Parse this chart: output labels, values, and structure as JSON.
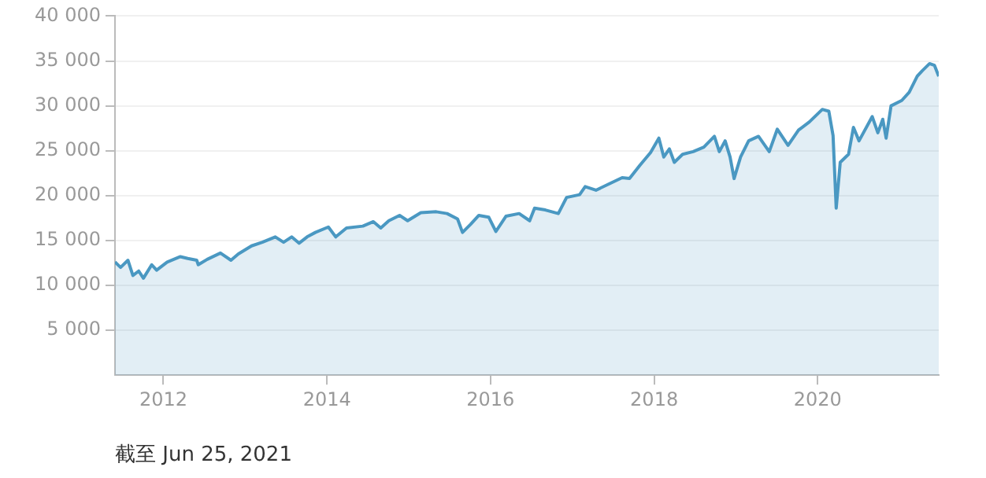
{
  "chart_data": {
    "type": "area",
    "annotations": [
      "截至 Jun 25, 2021"
    ],
    "x": [
      "2011-05-30",
      "2011-06-24",
      "2011-07-27",
      "2011-08-18",
      "2011-09-13",
      "2011-10-04",
      "2011-11-10",
      "2011-12-02",
      "2012-01-18",
      "2012-03-17",
      "2012-04-19",
      "2012-05-29",
      "2012-06-05",
      "2012-07-15",
      "2012-09-12",
      "2012-10-29",
      "2012-12-01",
      "2013-01-29",
      "2013-03-18",
      "2013-05-15",
      "2013-06-21",
      "2013-07-27",
      "2013-08-29",
      "2013-10-04",
      "2013-11-10",
      "2014-01-07",
      "2014-02-09",
      "2014-03-29",
      "2014-06-10",
      "2014-07-27",
      "2014-08-29",
      "2014-10-04",
      "2014-11-21",
      "2014-12-27",
      "2015-02-24",
      "2015-05-04",
      "2015-06-21",
      "2015-08-07",
      "2015-08-29",
      "2015-10-04",
      "2015-11-10",
      "2015-12-24",
      "2016-01-25",
      "2016-03-10",
      "2016-05-08",
      "2016-06-24",
      "2016-07-16",
      "2016-09-02",
      "2016-10-30",
      "2016-12-06",
      "2017-02-02",
      "2017-02-27",
      "2017-04-16",
      "2017-06-13",
      "2017-08-11",
      "2017-09-13",
      "2017-10-30",
      "2017-12-16",
      "2018-01-22",
      "2018-02-13",
      "2018-03-10",
      "2018-04-01",
      "2018-05-08",
      "2018-06-24",
      "2018-08-11",
      "2018-09-27",
      "2018-10-19",
      "2018-11-14",
      "2018-12-06",
      "2018-12-24",
      "2019-01-22",
      "2019-02-27",
      "2019-04-12",
      "2019-05-30",
      "2019-07-05",
      "2019-08-22",
      "2019-10-08",
      "2019-11-25",
      "2020-01-22",
      "2020-02-20",
      "2020-03-10",
      "2020-03-24",
      "2020-04-11",
      "2020-05-18",
      "2020-06-09",
      "2020-07-04",
      "2020-09-01",
      "2020-09-26",
      "2020-10-18",
      "2020-11-02",
      "2020-11-24",
      "2021-01-11",
      "2021-02-13",
      "2021-03-21",
      "2021-04-12",
      "2021-05-15",
      "2021-06-06",
      "2021-06-25"
    ],
    "series": [
      {
        "color": "#4a98c2",
        "values": [
          12600,
          12000,
          12800,
          11100,
          11600,
          10800,
          12300,
          11700,
          12600,
          13200,
          13000,
          12800,
          12300,
          12900,
          13600,
          12800,
          13500,
          14400,
          14800,
          15400,
          14800,
          15400,
          14700,
          15400,
          15900,
          16500,
          15400,
          16400,
          16600,
          17100,
          16400,
          17200,
          17800,
          17200,
          18100,
          18200,
          18000,
          17400,
          15900,
          16800,
          17800,
          17600,
          16000,
          17700,
          18000,
          17200,
          18600,
          18400,
          18000,
          19800,
          20100,
          21000,
          20600,
          21300,
          22000,
          21900,
          23400,
          24800,
          26400,
          24300,
          25200,
          23700,
          24600,
          24900,
          25400,
          26600,
          24900,
          26100,
          24300,
          21900,
          24300,
          26100,
          26600,
          24900,
          27400,
          25600,
          27300,
          28200,
          29600,
          29400,
          26700,
          18600,
          23700,
          24600,
          27600,
          26100,
          28800,
          27000,
          28500,
          26400,
          30000,
          30600,
          31500,
          33300,
          33900,
          34700,
          34500,
          33300
        ]
      }
    ],
    "xlim": [
      "2011-05-30",
      "2021-06-25"
    ],
    "xticks": [
      "2012",
      "2014",
      "2016",
      "2018",
      "2020"
    ],
    "ylim": [
      0,
      40000
    ],
    "yticks": [
      {
        "value": 5000,
        "label": "5 000"
      },
      {
        "value": 10000,
        "label": "10 000"
      },
      {
        "value": 15000,
        "label": "15 000"
      },
      {
        "value": 20000,
        "label": "20 000"
      },
      {
        "value": 25000,
        "label": "25 000"
      },
      {
        "value": 30000,
        "label": "30 000"
      },
      {
        "value": 35000,
        "label": "35 000"
      },
      {
        "value": 40000,
        "label": "40 000"
      }
    ],
    "grid": "y",
    "legend": false
  }
}
